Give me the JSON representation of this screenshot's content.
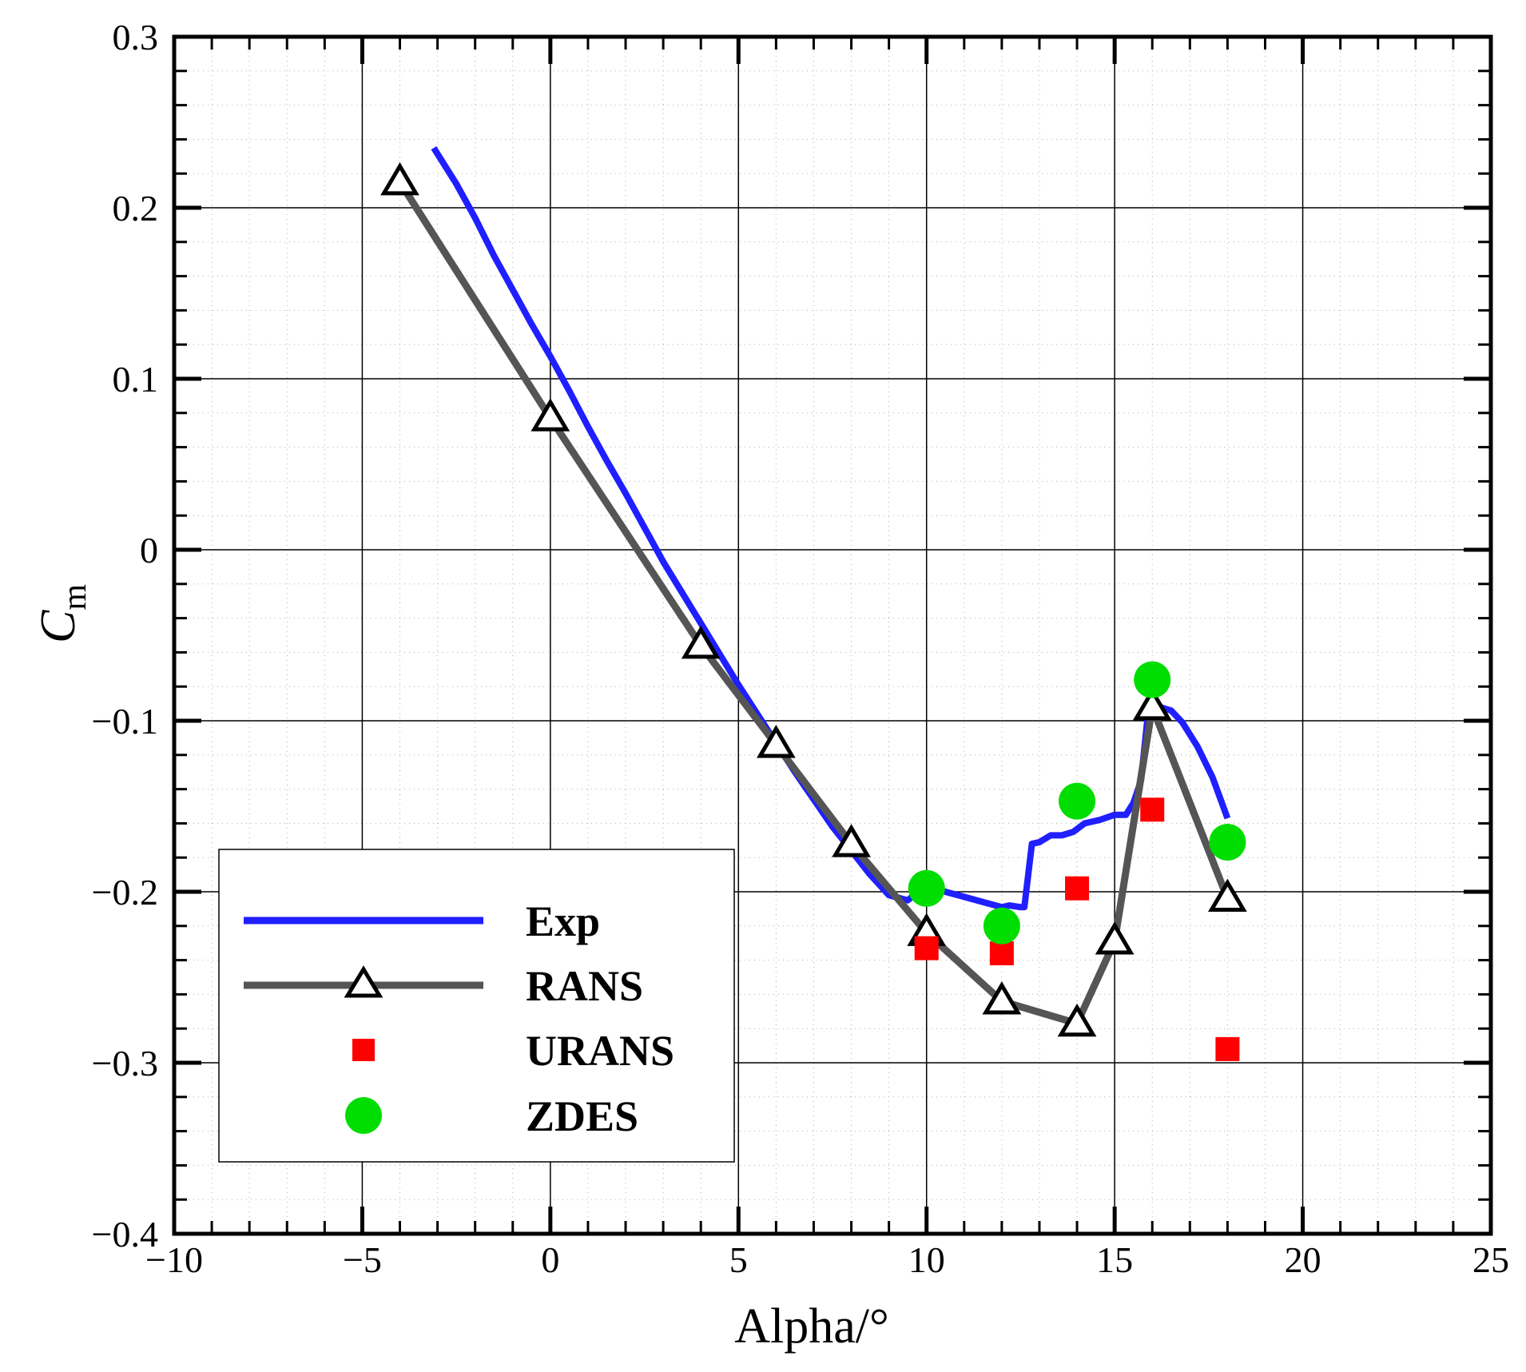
{
  "chart_data": {
    "type": "line",
    "xlabel": "Alpha/°",
    "ylabel_main": "C",
    "ylabel_sub": "m",
    "xlim": [
      -10,
      25
    ],
    "ylim": [
      -0.4,
      0.3
    ],
    "x_ticks": [
      -10,
      -5,
      0,
      5,
      10,
      15,
      20,
      25
    ],
    "x_tick_labels": [
      "−10",
      "−5",
      "0",
      "5",
      "10",
      "15",
      "20",
      "25"
    ],
    "y_ticks": [
      -0.4,
      -0.3,
      -0.2,
      -0.1,
      0,
      0.1,
      0.2,
      0.3
    ],
    "y_tick_labels": [
      "−0.4",
      "−0.3",
      "−0.2",
      "−0.1",
      "0",
      "0.1",
      "0.2",
      "0.3"
    ],
    "grid": true,
    "minor_grid": true,
    "legend_position": "lower-left",
    "series": [
      {
        "name": "Exp",
        "style": "line",
        "color": "#1f1fff",
        "x": [
          -3.1,
          -2.5,
          -2.0,
          -1.5,
          -1.0,
          -0.5,
          0,
          0.5,
          1.0,
          1.5,
          2.0,
          2.5,
          3.0,
          3.5,
          4.0,
          4.5,
          5.0,
          5.5,
          6.0,
          6.5,
          7.0,
          7.5,
          8.0,
          8.5,
          9.0,
          9.5,
          10.0,
          10.5,
          11.0,
          11.5,
          12.0,
          12.2,
          12.5,
          12.6,
          12.8,
          13.0,
          13.3,
          13.6,
          13.9,
          14.2,
          14.6,
          15.0,
          15.3,
          15.5,
          15.7,
          15.9,
          16.2,
          16.5,
          16.8,
          17.2,
          17.6,
          18.0
        ],
        "values": [
          0.235,
          0.214,
          0.194,
          0.172,
          0.152,
          0.132,
          0.113,
          0.093,
          0.072,
          0.052,
          0.033,
          0.013,
          -0.007,
          -0.025,
          -0.043,
          -0.061,
          -0.079,
          -0.096,
          -0.113,
          -0.13,
          -0.146,
          -0.162,
          -0.176,
          -0.19,
          -0.202,
          -0.205,
          -0.196,
          -0.2,
          -0.203,
          -0.206,
          -0.209,
          -0.208,
          -0.209,
          -0.209,
          -0.172,
          -0.171,
          -0.167,
          -0.167,
          -0.165,
          -0.16,
          -0.158,
          -0.155,
          -0.155,
          -0.148,
          -0.135,
          -0.093,
          -0.092,
          -0.094,
          -0.101,
          -0.115,
          -0.133,
          -0.157
        ]
      },
      {
        "name": "RANS",
        "style": "line+triangle",
        "color": "#555555",
        "x": [
          -4,
          0,
          4,
          6,
          8,
          10,
          12,
          14,
          15,
          16,
          18
        ],
        "values": [
          0.215,
          0.077,
          -0.056,
          -0.114,
          -0.172,
          -0.224,
          -0.264,
          -0.277,
          -0.229,
          -0.092,
          -0.204
        ]
      },
      {
        "name": "URANS",
        "style": "square",
        "color": "#ff0000",
        "x": [
          10,
          12,
          14,
          16,
          18
        ],
        "values": [
          -0.233,
          -0.236,
          -0.198,
          -0.152,
          -0.292
        ]
      },
      {
        "name": "ZDES",
        "style": "circle",
        "color": "#00dd00",
        "x": [
          10,
          12,
          14,
          16,
          18
        ],
        "values": [
          -0.198,
          -0.22,
          -0.147,
          -0.076,
          -0.171
        ]
      }
    ]
  }
}
